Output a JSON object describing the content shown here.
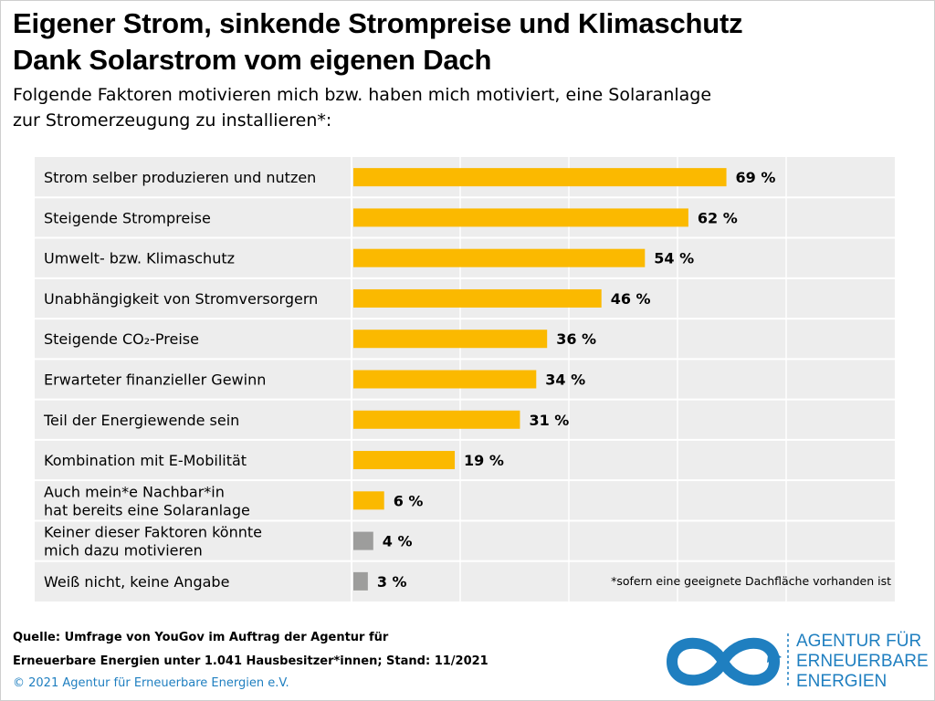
{
  "title": {
    "line1": "Eigener Strom, sinkende Strompreise und Klimaschutz",
    "line2": "Dank Solarstrom vom eigenen Dach"
  },
  "subtitle": {
    "line1": "Folgende Faktoren motivieren mich bzw. haben mich motiviert, eine Solaranlage",
    "line2": "zur Stromerzeugung zu installieren*:"
  },
  "chart_data": {
    "type": "bar",
    "orientation": "horizontal",
    "categories": [
      [
        "Strom selber produzieren und nutzen"
      ],
      [
        "Steigende Strompreise"
      ],
      [
        "Umwelt- bzw. Klimaschutz"
      ],
      [
        "Unabhängigkeit von Stromversorgern"
      ],
      [
        "Steigende CO₂-Preise"
      ],
      [
        "Erwarteter finanzieller Gewinn"
      ],
      [
        "Teil der Energiewende sein"
      ],
      [
        "Kombination mit E-Mobilität"
      ],
      [
        "Auch mein*e Nachbar*in",
        "hat bereits eine Solaranlage"
      ],
      [
        "Keiner dieser Faktoren könnte",
        "mich dazu motivieren"
      ],
      [
        "Weiß nicht, keine Angabe"
      ]
    ],
    "values": [
      69,
      62,
      54,
      46,
      36,
      34,
      31,
      19,
      6,
      4,
      3
    ],
    "value_labels": [
      "69 %",
      "62 %",
      "54 %",
      "46 %",
      "36 %",
      "34 %",
      "31 %",
      "19 %",
      "6 %",
      "4 %",
      "3 %"
    ],
    "bar_colors": [
      "#fbb900",
      "#fbb900",
      "#fbb900",
      "#fbb900",
      "#fbb900",
      "#fbb900",
      "#fbb900",
      "#fbb900",
      "#fbb900",
      "#9d9d9c",
      "#9d9d9c"
    ],
    "xlim": [
      0,
      100
    ],
    "grid": true,
    "panel_color": "#ededed",
    "footnote": "*sofern eine geeignete Dachfläche vorhanden ist"
  },
  "footer": {
    "source_line1": "Quelle: Umfrage von YouGov im Auftrag der Agentur für",
    "source_line2": "Erneuerbare Energien unter 1.041 Hausbesitzer*innen; Stand: 11/2021",
    "copyright": "© 2021 Agentur für Erneuerbare Energien e.V."
  },
  "logo": {
    "line1": "AGENTUR FÜR",
    "line2": "ERNEUERBARE",
    "line3": "ENERGIEN",
    "color": "#1f7fc0"
  }
}
